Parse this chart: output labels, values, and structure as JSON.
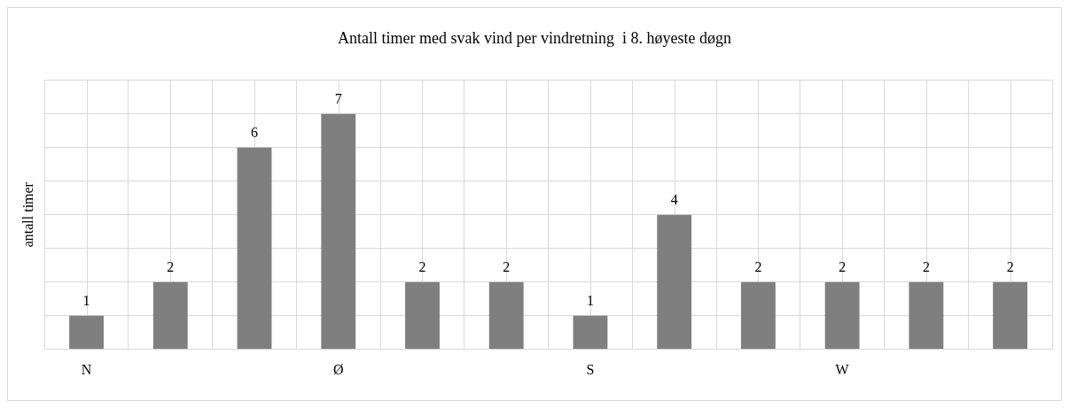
{
  "chart_data": {
    "type": "bar",
    "title": "Antall timer med svak vind per vindretning  i 8. høyeste døgn",
    "ylabel": "antall timer",
    "categories": [
      "N",
      null,
      null,
      "Ø",
      null,
      null,
      "S",
      null,
      null,
      "W",
      null,
      null
    ],
    "values": [
      1,
      2,
      6,
      7,
      2,
      2,
      1,
      4,
      2,
      2,
      2,
      2
    ],
    "color": "#7f7f7f",
    "tick_labels": "x",
    "grid": true,
    "legend": false,
    "data_labels": true
  }
}
